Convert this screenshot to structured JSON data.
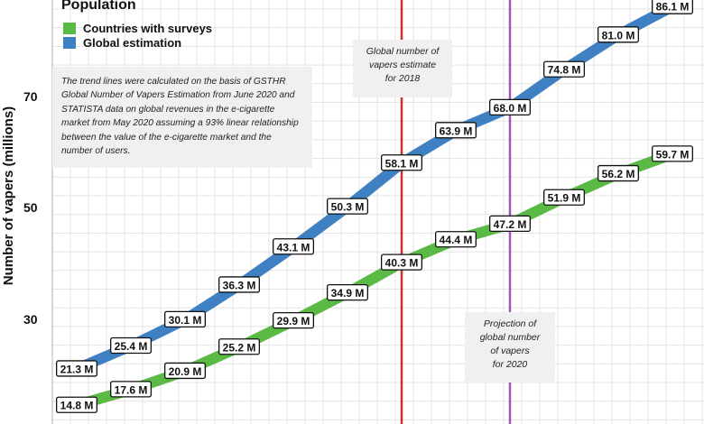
{
  "chart_data": {
    "type": "line",
    "ylabel": "Number of vapers (millions)",
    "yticks": [
      30,
      50,
      70
    ],
    "ylim": [
      14,
      87
    ],
    "grid": true,
    "legend": {
      "title": "Population",
      "placement": "top-left",
      "items": [
        {
          "label": "Countries with surveys",
          "color": "#5bb946"
        },
        {
          "label": "Global estimation",
          "color": "#3f80c2"
        }
      ]
    },
    "series": [
      {
        "name": "Global estimation",
        "color": "#3f80c2",
        "values": [
          21.3,
          25.4,
          30.1,
          36.3,
          43.1,
          50.3,
          58.1,
          63.9,
          68.0,
          74.8,
          81.0,
          86.1
        ],
        "labels": [
          "21.3 M",
          "25.4 M",
          "30.1 M",
          "36.3 M",
          "43.1 M",
          "50.3 M",
          "58.1 M",
          "63.9 M",
          "68.0 M",
          "74.8 M",
          "81.0 M",
          "86.1 M"
        ]
      },
      {
        "name": "Countries with surveys",
        "color": "#5bb946",
        "values": [
          14.8,
          17.6,
          20.9,
          25.2,
          29.9,
          34.9,
          40.3,
          44.4,
          47.2,
          51.9,
          56.2,
          59.7
        ],
        "labels": [
          "14.8 M",
          "17.6 M",
          "20.9 M",
          "25.2 M",
          "29.9 M",
          "34.9 M",
          "40.3 M",
          "44.4 M",
          "47.2 M",
          "51.9 M",
          "56.2 M",
          "59.7 M"
        ]
      }
    ],
    "reference_lines": [
      {
        "label": "Global number of vapers estimate for 2018",
        "color": "#d2302c",
        "lines": [
          "Global number of",
          "vapers estimate",
          "for 2018"
        ]
      },
      {
        "label": "Projection of global number of vapers for 2020",
        "color": "#9b59b6",
        "lines": [
          "Projection of",
          "global number",
          "of vapers",
          "for 2020"
        ]
      }
    ],
    "annotation": "The trend lines were calculated on the basis of GSTHR Global Number of Vapers Estimation from June 2020 and STATISTA data on global revenues in the e-cigarette market from May 2020 assuming a 93% linear relationship between the value of the e-cigarette market and the number of users."
  }
}
